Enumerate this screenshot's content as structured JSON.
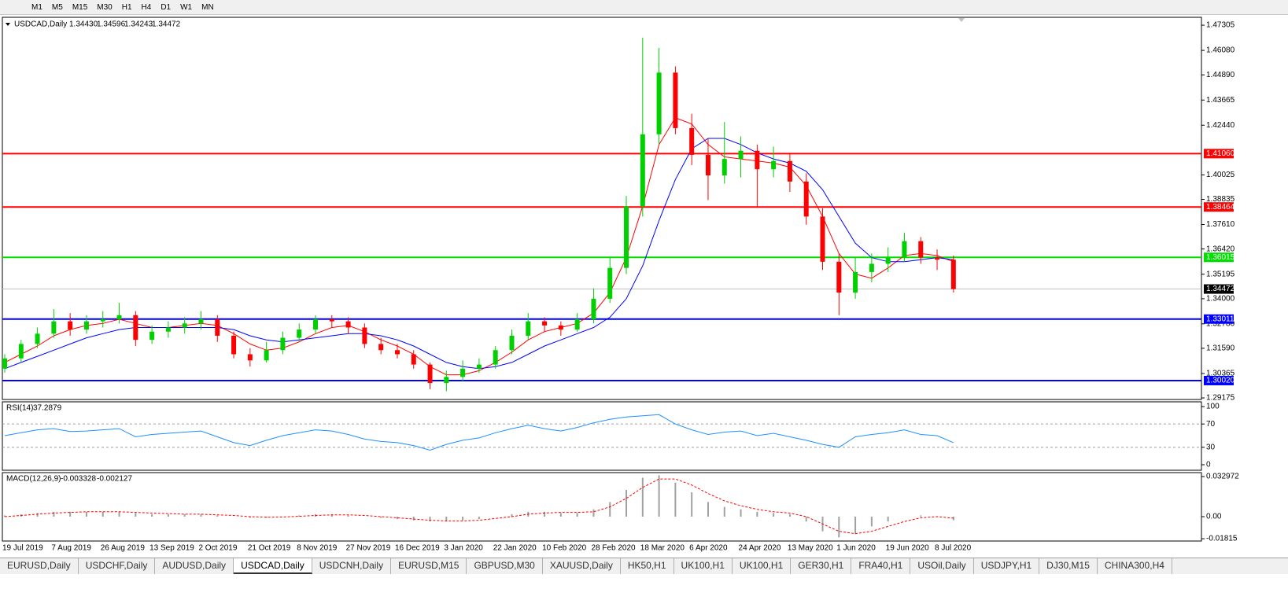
{
  "toolbar": {
    "timeframes": [
      "M1",
      "M5",
      "M15",
      "M30",
      "H1",
      "H4",
      "D1",
      "W1",
      "MN"
    ]
  },
  "tabs": {
    "items": [
      "EURUSD,Daily",
      "USDCHF,Daily",
      "AUDUSD,Daily",
      "USDCAD,Daily",
      "USDCNH,Daily",
      "EURUSD,M15",
      "GBPUSD,M30",
      "XAUUSD,Daily",
      "HK50,H1",
      "UK100,H1",
      "UK100,H1",
      "GER30,H1",
      "FRA40,H1",
      "USOil,Daily",
      "USDJPY,H1",
      "DJ30,M15",
      "CHINA300,H4"
    ],
    "active": 3
  },
  "chart_data": [
    {
      "type": "candlestick",
      "title": "USDCAD,Daily",
      "ohlc": [
        {
          "value": 1.3443,
          "label": "1.34430"
        },
        1.34596,
        1.34243,
        1.34472
      ],
      "categories": [
        "19 Jul 2019",
        null,
        null,
        "7 Aug 2019",
        null,
        null,
        "26 Aug 2019",
        null,
        null,
        "13 Sep 2019",
        null,
        null,
        "2 Oct 2019",
        null,
        null,
        "21 Oct 2019",
        null,
        null,
        "8 Nov 2019",
        null,
        null,
        "27 Nov 2019",
        null,
        null,
        "16 Dec 2019",
        null,
        null,
        "3 Jan 2020",
        null,
        null,
        "22 Jan 2020",
        null,
        null,
        "10 Feb 2020",
        null,
        null,
        "28 Feb 2020",
        null,
        null,
        "18 Mar 2020",
        null,
        null,
        "6 Apr 2020",
        null,
        null,
        "24 Apr 2020",
        null,
        null,
        "13 May 2020",
        null,
        null,
        "1 Jun 2020",
        null,
        null,
        "19 Jun 2020",
        null,
        null,
        "8 Jul 2020",
        null
      ],
      "candles": [
        [
          1.306,
          1.313,
          1.304,
          1.311
        ],
        [
          1.311,
          1.32,
          1.309,
          1.318
        ],
        [
          1.318,
          1.326,
          1.316,
          1.323
        ],
        [
          1.323,
          1.335,
          1.321,
          1.329
        ],
        [
          1.329,
          1.333,
          1.322,
          1.325
        ],
        [
          1.325,
          1.332,
          1.323,
          1.329
        ],
        [
          1.329,
          1.334,
          1.326,
          1.33
        ],
        [
          1.33,
          1.338,
          1.328,
          1.332
        ],
        [
          1.332,
          1.334,
          1.317,
          1.32
        ],
        [
          1.32,
          1.327,
          1.318,
          1.324
        ],
        [
          1.324,
          1.329,
          1.321,
          1.326
        ],
        [
          1.326,
          1.331,
          1.323,
          1.328
        ],
        [
          1.328,
          1.334,
          1.325,
          1.33
        ],
        [
          1.33,
          1.332,
          1.319,
          1.322
        ],
        [
          1.322,
          1.324,
          1.311,
          1.313
        ],
        [
          1.313,
          1.316,
          1.307,
          1.31
        ],
        [
          1.31,
          1.319,
          1.309,
          1.315
        ],
        [
          1.315,
          1.324,
          1.313,
          1.321
        ],
        [
          1.321,
          1.328,
          1.319,
          1.325
        ],
        [
          1.325,
          1.332,
          1.323,
          1.33
        ],
        [
          1.33,
          1.332,
          1.326,
          1.329
        ],
        [
          1.329,
          1.331,
          1.323,
          1.326
        ],
        [
          1.326,
          1.328,
          1.316,
          1.318
        ],
        [
          1.318,
          1.321,
          1.313,
          1.315
        ],
        [
          1.315,
          1.318,
          1.311,
          1.313
        ],
        [
          1.313,
          1.315,
          1.306,
          1.308
        ],
        [
          1.308,
          1.309,
          1.296,
          1.299
        ],
        [
          1.299,
          1.305,
          1.295,
          1.302
        ],
        [
          1.302,
          1.31,
          1.3,
          1.306
        ],
        [
          1.306,
          1.311,
          1.304,
          1.308
        ],
        [
          1.308,
          1.317,
          1.306,
          1.315
        ],
        [
          1.315,
          1.325,
          1.313,
          1.322
        ],
        [
          1.322,
          1.333,
          1.32,
          1.329
        ],
        [
          1.329,
          1.331,
          1.324,
          1.327
        ],
        [
          1.327,
          1.329,
          1.322,
          1.325
        ],
        [
          1.325,
          1.333,
          1.324,
          1.33
        ],
        [
          1.33,
          1.345,
          1.328,
          1.34
        ],
        [
          1.34,
          1.36,
          1.338,
          1.355
        ],
        [
          1.355,
          1.39,
          1.352,
          1.385
        ],
        [
          1.385,
          1.467,
          1.38,
          1.42
        ],
        [
          1.42,
          1.462,
          1.415,
          1.45
        ],
        [
          1.45,
          1.453,
          1.42,
          1.423
        ],
        [
          1.423,
          1.43,
          1.405,
          1.41
        ],
        [
          1.41,
          1.418,
          1.388,
          1.4
        ],
        [
          1.4,
          1.426,
          1.396,
          1.408
        ],
        [
          1.408,
          1.419,
          1.399,
          1.412
        ],
        [
          1.412,
          1.415,
          1.385,
          1.403
        ],
        [
          1.403,
          1.414,
          1.399,
          1.407
        ],
        [
          1.407,
          1.411,
          1.392,
          1.397
        ],
        [
          1.397,
          1.401,
          1.376,
          1.38
        ],
        [
          1.38,
          1.384,
          1.354,
          1.358
        ],
        [
          1.358,
          1.362,
          1.332,
          1.343
        ],
        [
          1.343,
          1.36,
          1.34,
          1.353
        ],
        [
          1.353,
          1.362,
          1.348,
          1.357
        ],
        [
          1.357,
          1.365,
          1.353,
          1.36
        ],
        [
          1.36,
          1.372,
          1.358,
          1.368
        ],
        [
          1.368,
          1.37,
          1.357,
          1.36
        ],
        [
          1.36,
          1.364,
          1.354,
          1.359
        ],
        [
          1.359,
          1.361,
          1.343,
          1.3447
        ]
      ],
      "up_color": "#00d000",
      "down_color": "#ff0000",
      "series": [
        {
          "color": "#ff0000",
          "values": [
            1.309,
            1.313,
            1.317,
            1.322,
            1.325,
            1.327,
            1.328,
            1.33,
            1.328,
            1.326,
            1.326,
            1.327,
            1.328,
            1.327,
            1.323,
            1.318,
            1.315,
            1.316,
            1.319,
            1.323,
            1.326,
            1.327,
            1.324,
            1.32,
            1.317,
            1.313,
            1.307,
            1.303,
            1.303,
            1.305,
            1.309,
            1.314,
            1.32,
            1.324,
            1.326,
            1.328,
            1.333,
            1.343,
            1.36,
            1.385,
            1.415,
            1.428,
            1.425,
            1.415,
            1.409,
            1.408,
            1.407,
            1.406,
            1.404,
            1.395,
            1.38,
            1.362,
            1.352,
            1.35,
            1.355,
            1.361,
            1.362,
            1.361,
            1.358
          ]
        },
        {
          "color": "#0000ff",
          "values": [
            1.306,
            1.309,
            1.312,
            1.315,
            1.318,
            1.321,
            1.323,
            1.325,
            1.326,
            1.326,
            1.326,
            1.326,
            1.326,
            1.326,
            1.325,
            1.322,
            1.32,
            1.319,
            1.32,
            1.321,
            1.322,
            1.323,
            1.323,
            1.322,
            1.32,
            1.317,
            1.313,
            1.309,
            1.307,
            1.306,
            1.307,
            1.309,
            1.313,
            1.317,
            1.32,
            1.323,
            1.326,
            1.331,
            1.34,
            1.356,
            1.378,
            1.398,
            1.413,
            1.418,
            1.418,
            1.415,
            1.411,
            1.408,
            1.406,
            1.402,
            1.393,
            1.38,
            1.367,
            1.36,
            1.358,
            1.358,
            1.359,
            1.36,
            1.359
          ]
        }
      ],
      "levels": [
        {
          "value": 1.4106,
          "label": "1.41060",
          "color": "#ff0000"
        },
        {
          "value": 1.38464,
          "label": "1.38464",
          "color": "#ff0000"
        },
        {
          "value": 1.36015,
          "label": "1.36015",
          "color": "#00e000"
        },
        {
          "value": 1.33011,
          "label": "1.33011",
          "color": "#0000ff"
        },
        {
          "value": 1.3002,
          "label": "1.30020",
          "color": "#0000ff"
        }
      ],
      "last_price": 1.34472,
      "ylim": [
        1.291,
        1.4769
      ],
      "yticks": [
        1.47305,
        {
          "value": 1.4608,
          "label": "1.46080"
        },
        {
          "value": 1.4489,
          "label": "1.44890"
        },
        1.43665,
        {
          "value": 1.4244,
          "label": "1.42440"
        },
        1.40025,
        1.38835,
        {
          "value": 1.3761,
          "label": "1.37610"
        },
        {
          "value": 1.3642,
          "label": "1.36420"
        },
        1.35195,
        {
          "value": 1.34,
          "label": "1.34000"
        },
        {
          "value": 1.3278,
          "label": "1.32780"
        },
        {
          "value": 1.3159,
          "label": "1.31590"
        },
        1.30365,
        1.29175
      ]
    },
    {
      "type": "line",
      "title": "RSI(14)",
      "title_value": 37.2879,
      "color": "#1e90ff",
      "values": [
        50,
        55,
        60,
        62,
        57,
        58,
        60,
        62,
        48,
        52,
        54,
        56,
        58,
        48,
        38,
        33,
        42,
        50,
        55,
        60,
        58,
        52,
        44,
        40,
        38,
        33,
        25,
        35,
        42,
        46,
        55,
        62,
        68,
        62,
        58,
        64,
        72,
        78,
        82,
        84,
        86,
        70,
        60,
        52,
        56,
        58,
        50,
        54,
        48,
        42,
        35,
        30,
        48,
        52,
        55,
        60,
        52,
        50,
        38
      ],
      "levels": [
        70,
        30
      ],
      "ylim": [
        -9.5,
        108.1
      ],
      "yticks": [
        100,
        70,
        30,
        0
      ]
    },
    {
      "type": "macd",
      "title": "MACD(12,26,9)",
      "title_values": [
        -0.003328,
        -0.002127
      ],
      "series": [
        {
          "color": "#a0a0a0",
          "style": "bar",
          "values": [
            0.001,
            0.002,
            0.003,
            0.004,
            0.004,
            0.004,
            0.004,
            0.004,
            0.003,
            0.002,
            0.002,
            0.002,
            0.002,
            0.001,
            0,
            -0.001,
            -0.001,
            0,
            0.001,
            0.002,
            0.002,
            0.001,
            0,
            -0.001,
            -0.002,
            -0.003,
            -0.004,
            -0.004,
            -0.003,
            -0.002,
            0,
            0.002,
            0.004,
            0.004,
            0.003,
            0.003,
            0.006,
            0.012,
            0.022,
            0.032,
            0.034,
            0.028,
            0.02,
            0.012,
            0.008,
            0.006,
            0.004,
            0.003,
            0.002,
            -0.004,
            -0.012,
            -0.017,
            -0.014,
            -0.008,
            -0.004,
            0,
            0.001,
            0,
            -0.003
          ]
        },
        {
          "color": "#ff0000",
          "style": "dashed",
          "values": [
            0,
            0.001,
            0.002,
            0.003,
            0.0035,
            0.004,
            0.004,
            0.004,
            0.0035,
            0.003,
            0.0025,
            0.002,
            0.002,
            0.0015,
            0.001,
            0,
            -0.0005,
            -0.0003,
            0.0003,
            0.001,
            0.0015,
            0.0015,
            0.001,
            0,
            -0.001,
            -0.002,
            -0.003,
            -0.0035,
            -0.0035,
            -0.003,
            -0.0015,
            0,
            0.002,
            0.003,
            0.0035,
            0.0035,
            0.004,
            0.008,
            0.015,
            0.024,
            0.031,
            0.031,
            0.026,
            0.019,
            0.013,
            0.009,
            0.006,
            0.004,
            0.003,
            0,
            -0.006,
            -0.012,
            -0.014,
            -0.012,
            -0.008,
            -0.004,
            -0.001,
            0,
            -0.0012
          ]
        }
      ],
      "ylim": [
        -0.02004,
        0.036205
      ],
      "yticks": [
        0.032972,
        {
          "value": 0,
          "label": "0.00"
        },
        -0.01815
      ]
    }
  ]
}
